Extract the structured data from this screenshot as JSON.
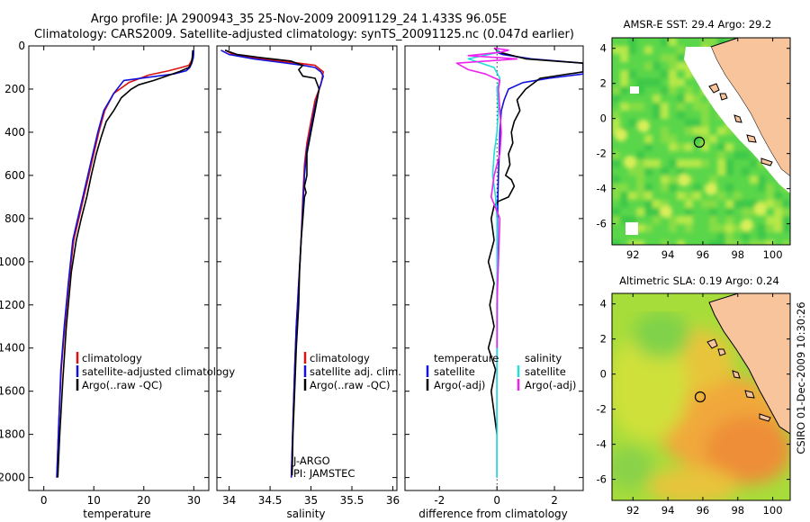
{
  "title": {
    "line1": "Argo profile: JA 2900943_35 25-Nov-2009 20091129_24 1.433S 96.05E",
    "line2": "Climatology: CARS2009. Satellite-adjusted climatology: synTS_20091125.nc (0.047d earlier)"
  },
  "side_text": "CSIRO 01-Dec-2009 10:30:26",
  "colors": {
    "red": "#dd1111",
    "blue": "#1111dd",
    "black": "#000000",
    "cyan": "#22dddd",
    "magenta": "#ee22ee",
    "land": "#f8c49c"
  },
  "chart_data": [
    {
      "type": "line",
      "xlabel": "temperature",
      "ylabel": "",
      "xlim": [
        -3,
        33
      ],
      "ylim": [
        2060,
        0
      ],
      "xticks": [
        0,
        10,
        20,
        30
      ],
      "yticks": [
        0,
        200,
        400,
        600,
        800,
        1000,
        1200,
        1400,
        1600,
        1800,
        2000
      ],
      "legend": {
        "position": "lower-right",
        "entries": [
          "climatology",
          "satellite-adjusted climatology",
          "Argo(..raw -QC)"
        ]
      },
      "series": [
        {
          "name": "climatology",
          "color": "red",
          "x": [
            30.0,
            29.9,
            29.5,
            29.0,
            27.5,
            25.0,
            21.0,
            17.0,
            14.0,
            12.2,
            11.0,
            10.0,
            9.0,
            8.0,
            7.0,
            6.0,
            5.0,
            4.2,
            3.5,
            3.0,
            2.6
          ],
          "y": [
            20,
            50,
            70,
            90,
            100,
            115,
            135,
            170,
            220,
            300,
            400,
            500,
            600,
            700,
            800,
            900,
            1100,
            1300,
            1500,
            1750,
            2000
          ]
        },
        {
          "name": "satellite-adjusted climatology",
          "color": "blue",
          "x": [
            30.0,
            29.9,
            29.6,
            29.2,
            28.5,
            26.0,
            21.0,
            16.0,
            14.0,
            12.0,
            10.8,
            9.8,
            8.8,
            7.8,
            6.8,
            5.8,
            4.9,
            4.1,
            3.4,
            3.0,
            2.6
          ],
          "y": [
            20,
            55,
            80,
            100,
            115,
            130,
            145,
            160,
            220,
            300,
            400,
            500,
            600,
            700,
            800,
            900,
            1100,
            1300,
            1500,
            1750,
            2000
          ]
        },
        {
          "name": "Argo(..raw -QC)",
          "color": "black",
          "x": [
            29.8,
            29.7,
            29.5,
            29.0,
            27.0,
            24.5,
            22.0,
            19.0,
            17.5,
            15.5,
            14.0,
            12.5,
            11.5,
            10.5,
            9.5,
            8.6,
            7.5,
            6.5,
            5.5,
            4.5,
            3.8,
            3.2,
            2.8
          ],
          "y": [
            20,
            50,
            80,
            100,
            120,
            140,
            160,
            180,
            200,
            240,
            300,
            350,
            420,
            500,
            600,
            700,
            800,
            900,
            1050,
            1300,
            1550,
            1800,
            2000
          ]
        }
      ]
    },
    {
      "type": "line",
      "xlabel": "salinity",
      "xlim": [
        33.85,
        36.05
      ],
      "ylim": [
        2060,
        0
      ],
      "xticks": [
        34,
        34.5,
        35,
        35.5,
        36
      ],
      "xticklabels": [
        "34",
        "34.5",
        "35",
        "35.5",
        "36"
      ],
      "yticks": [
        0,
        200,
        400,
        600,
        800,
        1000,
        1200,
        1400,
        1600,
        1800,
        2000
      ],
      "legend": {
        "position": "lower-right",
        "entries": [
          "climatology",
          "satellite adj. clim.",
          "Argo(..raw -QC)"
        ]
      },
      "annotations": [
        "J-ARGO",
        "PI: JAMSTEC"
      ],
      "series": [
        {
          "name": "climatology",
          "color": "red",
          "x": [
            33.95,
            34.05,
            34.3,
            34.6,
            34.85,
            35.05,
            35.15,
            35.12,
            35.05,
            35.0,
            34.95,
            34.92,
            34.9,
            34.88,
            34.85,
            34.82,
            34.8,
            34.78,
            34.76
          ],
          "y": [
            20,
            40,
            55,
            70,
            80,
            90,
            120,
            180,
            250,
            350,
            450,
            550,
            700,
            900,
            1100,
            1300,
            1500,
            1750,
            2000
          ]
        },
        {
          "name": "satellite adj. clim.",
          "color": "blue",
          "x": [
            33.9,
            34.0,
            34.3,
            34.6,
            34.9,
            35.05,
            35.12,
            35.15,
            35.1,
            35.05,
            35.0,
            34.95,
            34.92,
            34.9,
            34.88,
            34.85,
            34.82,
            34.8,
            34.78,
            34.76
          ],
          "y": [
            20,
            40,
            60,
            75,
            90,
            100,
            120,
            140,
            200,
            280,
            380,
            480,
            600,
            750,
            900,
            1100,
            1300,
            1500,
            1750,
            2000
          ]
        },
        {
          "name": "Argo(..raw -QC)",
          "color": "black",
          "x": [
            33.95,
            34.1,
            34.4,
            34.75,
            34.9,
            34.85,
            34.9,
            35.05,
            35.1,
            35.05,
            35.0,
            34.95,
            34.95,
            34.92,
            34.94,
            34.92,
            34.9,
            34.88,
            34.86,
            34.85,
            34.82,
            34.8,
            34.78,
            34.77
          ],
          "y": [
            20,
            40,
            55,
            70,
            90,
            110,
            140,
            150,
            200,
            300,
            400,
            500,
            600,
            650,
            680,
            700,
            800,
            900,
            1050,
            1200,
            1400,
            1600,
            1800,
            1990
          ]
        }
      ]
    },
    {
      "type": "line",
      "xlabel": "difference from climatology",
      "xlim": [
        -3.2,
        3.0
      ],
      "ylim": [
        2060,
        0
      ],
      "xticks": [
        -2,
        0,
        2
      ],
      "yticks": [
        0,
        200,
        400,
        600,
        800,
        1000,
        1200,
        1400,
        1600,
        1800,
        2000
      ],
      "legend": {
        "position": "lower-center",
        "columns": [
          [
            "temperature",
            "satellite",
            "Argo(-adj)"
          ],
          [
            "salinity",
            "satellite",
            "Argo(-adj)"
          ]
        ]
      },
      "series": [
        {
          "name": "temperature satellite",
          "color": "blue",
          "x": [
            0.0,
            0.0,
            0.2,
            1.2,
            3.0,
            3.0,
            1.8,
            0.9,
            0.4,
            0.25,
            0.15,
            0.1,
            0.08,
            0.05,
            0.03,
            0.02,
            0.01,
            0.0,
            0.0
          ],
          "y": [
            10,
            30,
            40,
            60,
            80,
            130,
            150,
            170,
            200,
            250,
            300,
            400,
            500,
            600,
            700,
            800,
            1000,
            1500,
            2000
          ]
        },
        {
          "name": "temperature Argo(-adj)",
          "color": "black",
          "x": [
            -0.1,
            0.1,
            1.0,
            3.0,
            3.0,
            1.5,
            1.0,
            0.7,
            0.8,
            0.6,
            0.5,
            0.55,
            0.4,
            0.45,
            0.3,
            0.5,
            0.6,
            0.4,
            0.05,
            -0.1,
            -0.2,
            -0.1,
            -0.3,
            -0.1,
            -0.25,
            -0.1,
            -0.3,
            -0.05,
            -0.2,
            0.0
          ],
          "y": [
            10,
            30,
            60,
            80,
            120,
            150,
            200,
            250,
            300,
            350,
            400,
            450,
            500,
            550,
            600,
            620,
            650,
            700,
            720,
            740,
            800,
            900,
            1000,
            1100,
            1200,
            1300,
            1400,
            1500,
            1600,
            1800
          ]
        },
        {
          "name": "salinity satellite",
          "color": "cyan",
          "x": [
            0.0,
            0.05,
            -1.0,
            -0.1,
            0.1,
            0.0,
            0.05,
            0.0,
            -0.1,
            -0.15,
            -0.05,
            0.0,
            0.0,
            0.02,
            0.0,
            0.0,
            0.0
          ],
          "y": [
            10,
            30,
            60,
            100,
            150,
            200,
            300,
            400,
            500,
            600,
            700,
            800,
            1000,
            1200,
            1500,
            1800,
            2000
          ]
        },
        {
          "name": "salinity Argo(-adj)",
          "color": "magenta",
          "x": [
            -0.1,
            0.4,
            0.1,
            -1.0,
            0.7,
            -1.4,
            -1.0,
            -0.4,
            0.1,
            0.05,
            0.1,
            0.15,
            0.1,
            -0.1,
            -0.2,
            0.1,
            0.05,
            0.0,
            0.0
          ],
          "y": [
            10,
            20,
            30,
            45,
            60,
            80,
            110,
            130,
            160,
            200,
            300,
            400,
            500,
            600,
            700,
            800,
            1000,
            1200,
            1400
          ]
        }
      ]
    },
    {
      "type": "heatmap",
      "title": "AMSR-E SST: 29.4 Argo: 29.2",
      "xlim": [
        90.8,
        101.0
      ],
      "ylim": [
        -7.2,
        4.6
      ],
      "xticks": [
        92,
        94,
        96,
        98,
        100
      ],
      "yticks": [
        4,
        2,
        0,
        -2,
        -4,
        -6
      ],
      "marker": {
        "lon": 96.05,
        "lat": -1.43
      }
    },
    {
      "type": "heatmap",
      "title": "Altimetric SLA: 0.19 Argo: 0.24",
      "xlim": [
        90.8,
        101.0
      ],
      "ylim": [
        -7.2,
        4.6
      ],
      "xticks": [
        92,
        94,
        96,
        98,
        100
      ],
      "yticks": [
        4,
        2,
        0,
        -2,
        -4,
        -6
      ],
      "marker": {
        "lon": 96.05,
        "lat": -1.43
      }
    }
  ]
}
